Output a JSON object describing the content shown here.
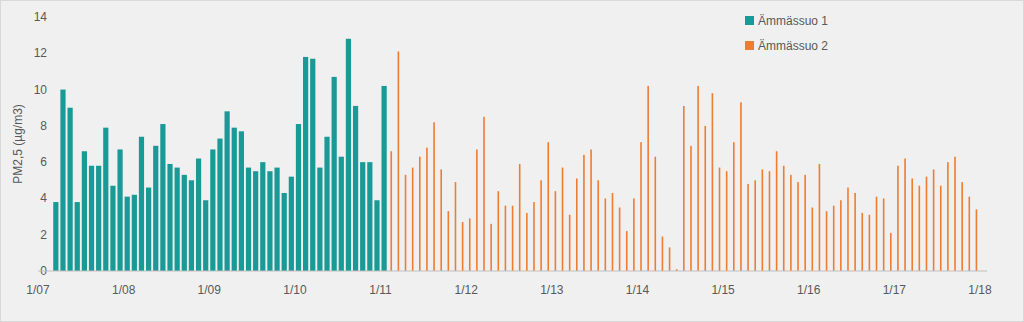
{
  "chart_data": {
    "type": "bar",
    "y_label": "PM2,5 (µg/m3)",
    "categories": [
      "1/07",
      null,
      null,
      null,
      null,
      null,
      null,
      null,
      null,
      null,
      null,
      null,
      "1/08",
      null,
      null,
      null,
      null,
      null,
      null,
      null,
      null,
      null,
      null,
      null,
      "1/09",
      null,
      null,
      null,
      null,
      null,
      null,
      null,
      null,
      null,
      null,
      null,
      "1/10",
      null,
      null,
      null,
      null,
      null,
      null,
      null,
      null,
      null,
      null,
      null,
      "1/11",
      null,
      null,
      null,
      null,
      null,
      null,
      null,
      null,
      null,
      null,
      null,
      "1/12",
      null,
      null,
      null,
      null,
      null,
      null,
      null,
      null,
      null,
      null,
      null,
      "1/13",
      null,
      null,
      null,
      null,
      null,
      null,
      null,
      null,
      null,
      null,
      null,
      "1/14",
      null,
      null,
      null,
      null,
      null,
      null,
      null,
      null,
      null,
      null,
      null,
      "1/15",
      null,
      null,
      null,
      null,
      null,
      null,
      null,
      null,
      null,
      null,
      null,
      "1/16",
      null,
      null,
      null,
      null,
      null,
      null,
      null,
      null,
      null,
      null,
      null,
      "1/17",
      null,
      null,
      null,
      null,
      null,
      null,
      null,
      null,
      null,
      null,
      null,
      "1/18"
    ],
    "series": [
      {
        "name": "Ämmässuo 1",
        "color": "#1a9a96",
        "values": [
          null,
          null,
          3.8,
          10,
          9,
          3.8,
          6.6,
          5.8,
          5.8,
          7.9,
          4.7,
          6.7,
          4.1,
          4.2,
          7.4,
          4.6,
          6.9,
          8.1,
          5.9,
          5.7,
          5.3,
          5,
          6.2,
          3.9,
          6.7,
          7.3,
          8.8,
          7.9,
          7.7,
          5.7,
          5.5,
          6,
          5.5,
          5.7,
          4.3,
          5.2,
          8.1,
          11.8,
          11.7,
          5.7,
          7.4,
          10.7,
          6.3,
          12.8,
          9.1,
          6,
          6,
          3.9,
          10.2,
          null,
          null,
          null,
          null,
          null,
          null,
          null,
          null,
          null,
          null,
          null,
          null,
          null,
          null,
          null,
          null,
          null,
          null,
          null,
          null,
          null,
          null,
          null,
          null,
          null,
          null,
          null,
          null,
          null,
          null,
          null,
          null,
          null,
          null,
          null,
          null,
          null,
          null,
          null,
          null,
          null,
          null,
          null,
          null,
          null,
          null,
          null,
          null,
          null,
          null,
          null,
          null,
          null,
          null,
          null,
          null,
          null,
          null,
          null,
          null,
          null,
          null,
          null,
          null,
          null,
          null,
          null,
          null,
          null,
          null,
          null,
          null,
          null,
          null,
          null,
          null,
          null,
          null,
          null,
          null,
          null,
          null,
          null,
          null
        ]
      },
      {
        "name": "Ämmässuo 2",
        "color": "#ed7d31",
        "values": [
          null,
          null,
          null,
          null,
          null,
          null,
          null,
          null,
          null,
          null,
          null,
          null,
          null,
          null,
          null,
          null,
          null,
          null,
          null,
          null,
          null,
          null,
          null,
          null,
          null,
          null,
          null,
          null,
          null,
          null,
          null,
          null,
          null,
          null,
          null,
          null,
          null,
          null,
          null,
          null,
          null,
          null,
          null,
          null,
          null,
          null,
          null,
          null,
          null,
          6.6,
          12.1,
          5.3,
          5.7,
          6.3,
          6.8,
          8.2,
          5.6,
          3.3,
          4.9,
          2.7,
          2.9,
          6.7,
          8.5,
          2.6,
          4.4,
          3.6,
          3.6,
          5.9,
          3.2,
          3.8,
          5,
          7.1,
          4.4,
          5.7,
          3.1,
          5.1,
          6.4,
          6.7,
          5,
          4,
          4.3,
          3.5,
          2.2,
          4,
          7.1,
          10.2,
          6.3,
          1.9,
          1.3,
          0.1,
          9.1,
          6.9,
          10.2,
          8,
          9.8,
          5.7,
          5.5,
          7.1,
          9.3,
          4.8,
          5,
          5.6,
          5.5,
          6.6,
          5.8,
          5.3,
          4.9,
          5.3,
          3.5,
          5.9,
          3.3,
          3.6,
          3.9,
          4.6,
          4.3,
          3.2,
          3.1,
          4.1,
          4,
          2.1,
          5.8,
          6.2,
          5.1,
          4.7,
          5.2,
          5.6,
          4.7,
          6,
          6.3,
          4.9,
          4.1,
          3.4,
          null
        ]
      }
    ],
    "ylim": [
      0,
      14
    ],
    "yticks": [
      0,
      2,
      4,
      6,
      8,
      10,
      12,
      14
    ],
    "grid": false,
    "legend": "top-right"
  }
}
